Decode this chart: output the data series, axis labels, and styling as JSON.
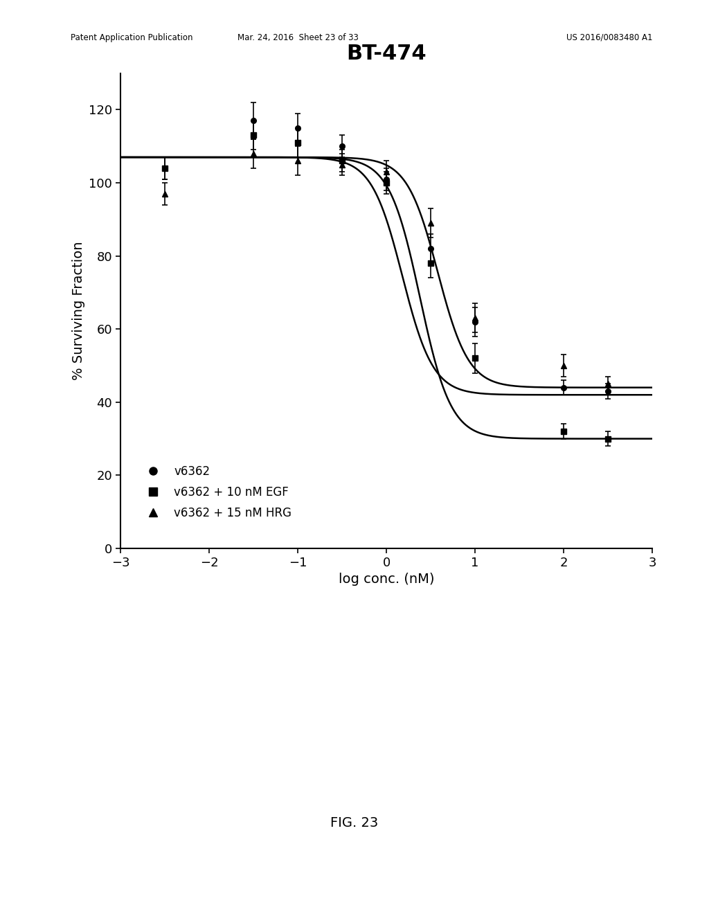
{
  "title": "BT-474",
  "xlabel": "log conc. (nM)",
  "ylabel": "% Surviving Fraction",
  "xlim": [
    -3,
    3
  ],
  "ylim": [
    0,
    130
  ],
  "yticks": [
    0,
    20,
    40,
    60,
    80,
    100,
    120
  ],
  "xticks": [
    -3,
    -2,
    -1,
    0,
    1,
    2,
    3
  ],
  "title_fontsize": 22,
  "label_fontsize": 14,
  "tick_fontsize": 13,
  "series": [
    {
      "label": "v6362",
      "marker": "o",
      "color": "#000000",
      "top": 107,
      "bottom": 42,
      "ec50": 0.18,
      "hill": 2.5,
      "data_x": [
        -2.5,
        -1.5,
        -1.0,
        -0.5,
        0.0,
        0.5,
        1.0,
        2.0,
        2.5
      ],
      "data_y": [
        104,
        117,
        115,
        110,
        101,
        82,
        62,
        44,
        43
      ],
      "err_y": [
        3,
        5,
        4,
        3,
        3,
        4,
        4,
        2,
        2
      ]
    },
    {
      "label": "v6362 + 10 nM EGF",
      "marker": "s",
      "color": "#000000",
      "top": 107,
      "bottom": 30,
      "ec50": 0.38,
      "hill": 2.5,
      "data_x": [
        -2.5,
        -1.5,
        -1.0,
        -0.5,
        0.0,
        0.5,
        1.0,
        2.0,
        2.5
      ],
      "data_y": [
        104,
        113,
        111,
        106,
        100,
        78,
        52,
        32,
        30
      ],
      "err_y": [
        3,
        4,
        4,
        3,
        3,
        4,
        4,
        2,
        2
      ]
    },
    {
      "label": "v6362 + 15 nM HRG",
      "marker": "^",
      "color": "#000000",
      "top": 107,
      "bottom": 44,
      "ec50": 0.58,
      "hill": 2.5,
      "data_x": [
        -2.5,
        -1.5,
        -1.0,
        -0.5,
        0.0,
        0.5,
        1.0,
        2.0,
        2.5
      ],
      "data_y": [
        97,
        108,
        106,
        105,
        103,
        89,
        63,
        50,
        45
      ],
      "err_y": [
        3,
        4,
        4,
        3,
        3,
        4,
        4,
        3,
        2
      ]
    }
  ],
  "header_left": "Patent Application Publication",
  "header_mid": "Mar. 24, 2016  Sheet 23 of 33",
  "header_right": "US 2016/0083480 A1",
  "fig_label": "FIG. 23",
  "background_color": "#ffffff"
}
